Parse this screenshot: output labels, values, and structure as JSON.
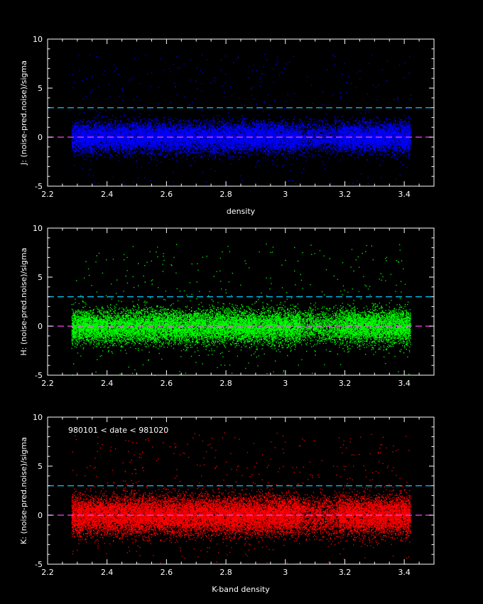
{
  "colors": {
    "background": "#000000",
    "frame": "#ffffff",
    "threshold_line": "#00c8ff",
    "zero_line": "#ff40ff"
  },
  "chart_data": [
    {
      "type": "scatter",
      "panel": "J",
      "xlabel": "density",
      "ylabel": "J: (noise-pred.noise)/sigma",
      "xlim": [
        2.2,
        3.5
      ],
      "ylim": [
        -5,
        10
      ],
      "xticks": [
        "2.2",
        "2.4",
        "2.6",
        "2.8",
        "3",
        "3.2",
        "3.4"
      ],
      "yticks": [
        "-5",
        "0",
        "5",
        "10"
      ],
      "point_color": "#0000ff",
      "x_range": [
        2.28,
        3.42
      ],
      "approx_point_count": 18000,
      "spread_sigma": 0.75,
      "hlines": [
        {
          "y": 3,
          "color": "#00c8ff",
          "style": "dashed"
        },
        {
          "y": 0,
          "color": "#ff40ff",
          "style": "dashed"
        }
      ],
      "annotation": "",
      "grid": false,
      "legend": "none"
    },
    {
      "type": "scatter",
      "panel": "H",
      "xlabel": "",
      "ylabel": "H: (noise-pred.noise)/sigma",
      "xlim": [
        2.2,
        3.5
      ],
      "ylim": [
        -5,
        10
      ],
      "xticks": [
        "2.2",
        "2.4",
        "2.6",
        "2.8",
        "3",
        "3.2",
        "3.4"
      ],
      "yticks": [
        "-5",
        "0",
        "5",
        "10"
      ],
      "point_color": "#00ff00",
      "x_range": [
        2.28,
        3.42
      ],
      "approx_point_count": 16000,
      "spread_sigma": 0.85,
      "hlines": [
        {
          "y": 3,
          "color": "#00c8ff",
          "style": "dashed"
        },
        {
          "y": 0,
          "color": "#ff40ff",
          "style": "dashed"
        }
      ],
      "annotation": "",
      "grid": false,
      "legend": "none"
    },
    {
      "type": "scatter",
      "panel": "K",
      "xlabel": "K-band density",
      "ylabel": "K: (noise-pred.noise)/sigma",
      "xlim": [
        2.2,
        3.5
      ],
      "ylim": [
        -5,
        10
      ],
      "xticks": [
        "2.2",
        "2.4",
        "2.6",
        "2.8",
        "3",
        "3.2",
        "3.4"
      ],
      "yticks": [
        "-5",
        "0",
        "5",
        "10"
      ],
      "point_color": "#ff0000",
      "x_range": [
        2.28,
        3.42
      ],
      "approx_point_count": 20000,
      "spread_sigma": 0.95,
      "hlines": [
        {
          "y": 3,
          "color": "#00c8ff",
          "style": "dashed"
        },
        {
          "y": 0,
          "color": "#ff40ff",
          "style": "dashed"
        }
      ],
      "annotation": "980101 < date < 981020",
      "grid": false,
      "legend": "none"
    }
  ]
}
